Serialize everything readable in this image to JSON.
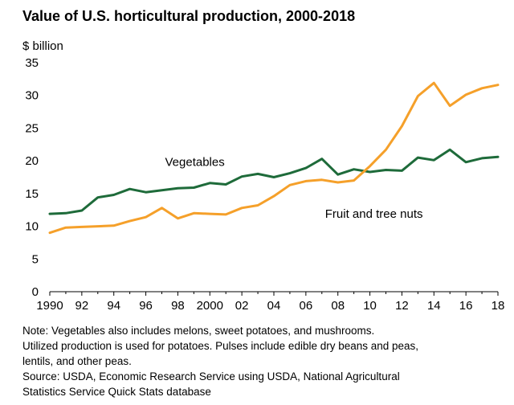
{
  "chart_data": {
    "type": "line",
    "title": "Value of U.S. horticultural production, 2000-2018",
    "ylabel": "$ billion",
    "xlabel": "",
    "ylim": [
      0,
      35
    ],
    "xlim": [
      1990,
      2018
    ],
    "yticks": [
      0,
      5,
      10,
      15,
      20,
      25,
      30,
      35
    ],
    "xticks": [
      {
        "value": 1990,
        "label": "1990"
      },
      {
        "value": 1992,
        "label": "92"
      },
      {
        "value": 1994,
        "label": "94"
      },
      {
        "value": 1996,
        "label": "96"
      },
      {
        "value": 1998,
        "label": "98"
      },
      {
        "value": 2000,
        "label": "2000"
      },
      {
        "value": 2002,
        "label": "02"
      },
      {
        "value": 2004,
        "label": "04"
      },
      {
        "value": 2006,
        "label": "06"
      },
      {
        "value": 2008,
        "label": "08"
      },
      {
        "value": 2010,
        "label": "10"
      },
      {
        "value": 2012,
        "label": "12"
      },
      {
        "value": 2014,
        "label": "14"
      },
      {
        "value": 2016,
        "label": "16"
      },
      {
        "value": 2018,
        "label": "18"
      }
    ],
    "x": [
      1990,
      1991,
      1992,
      1993,
      1994,
      1995,
      1996,
      1997,
      1998,
      1999,
      2000,
      2001,
      2002,
      2003,
      2004,
      2005,
      2006,
      2007,
      2008,
      2009,
      2010,
      2011,
      2012,
      2013,
      2014,
      2015,
      2016,
      2017,
      2018
    ],
    "series": [
      {
        "name": "Vegetables",
        "label": "Vegetables",
        "color": "#1e6b3a",
        "label_at": [
          1997.2,
          19.2
        ],
        "values": [
          11.9,
          12.0,
          12.4,
          14.4,
          14.8,
          15.7,
          15.2,
          15.5,
          15.8,
          15.9,
          16.6,
          16.4,
          17.6,
          18.0,
          17.5,
          18.1,
          18.9,
          20.3,
          17.9,
          18.7,
          18.3,
          18.6,
          18.5,
          20.5,
          20.1,
          21.7,
          19.8,
          20.4,
          20.6
        ]
      },
      {
        "name": "Fruit and tree nuts",
        "label": "Fruit and tree nuts",
        "color": "#f5a02a",
        "label_at": [
          2007.2,
          11.3
        ],
        "values": [
          9.0,
          9.8,
          9.9,
          10.0,
          10.1,
          10.8,
          11.4,
          12.8,
          11.2,
          12.0,
          11.9,
          11.8,
          12.8,
          13.2,
          14.6,
          16.3,
          16.9,
          17.1,
          16.7,
          17.0,
          19.2,
          21.7,
          25.3,
          29.9,
          31.9,
          28.4,
          30.1,
          31.1,
          31.6
        ]
      }
    ]
  },
  "notes": [
    "Note: Vegetables also includes melons, sweet potatoes, and mushrooms.",
    "Utilized production is used for potatoes. Pulses include edible dry beans and peas,",
    "lentils, and other peas.",
    "Source: USDA, Economic Research Service using USDA, National Agricultural",
    "Statistics Service Quick Stats database"
  ]
}
